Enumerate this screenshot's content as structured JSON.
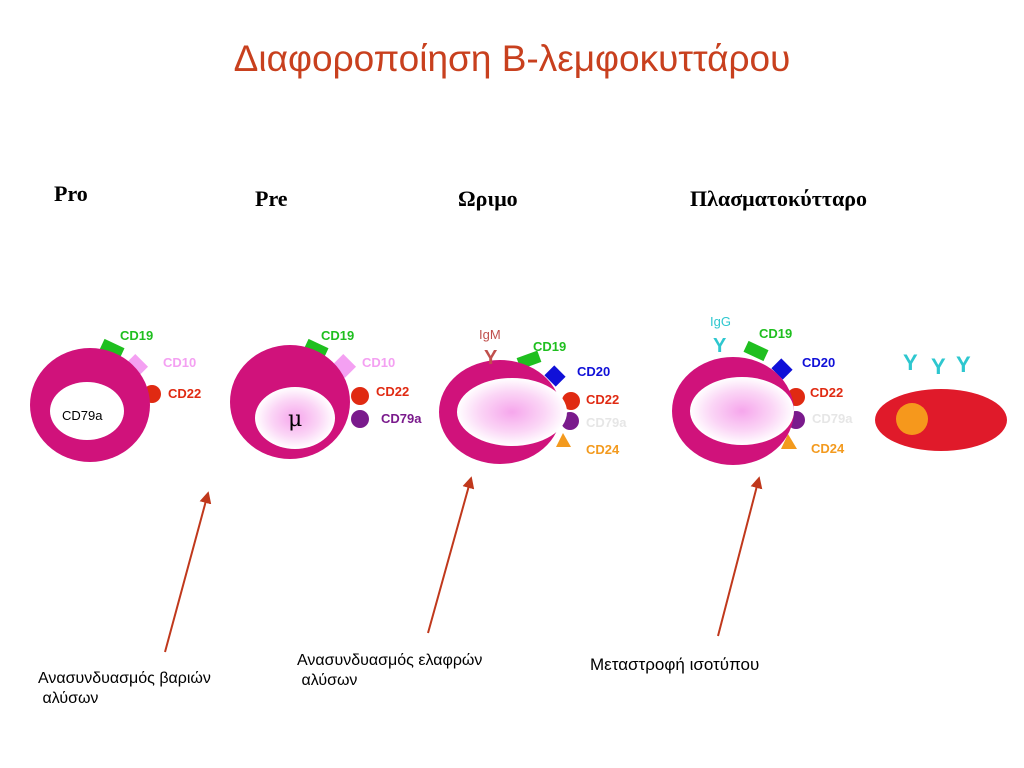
{
  "title": "Διαφοροποίηση Β-λεμφοκυττάρου",
  "stages": [
    "Pro",
    "Pre",
    "Ωριμο",
    "Πλασματοκύτταρο"
  ],
  "colors": {
    "title": "#c8401e",
    "cell": "#d0127b",
    "nucleus_glow": "#f6a6ec",
    "cd19": "#1fbf1f",
    "cd10": "#f4a0f2",
    "cd22": "#e02a12",
    "cd79a": "#7a1a8c",
    "cd20": "#1010d8",
    "cd24": "#f39a1e",
    "antibody": "#2ec7cf",
    "igm": "#c0504d",
    "arrow": "#c0381c",
    "plasma_cell": "#e01a2a",
    "plasma_nucleus": "#f6981c"
  },
  "cells": {
    "pro": {
      "cd19": "CD19",
      "cd10": "CD10",
      "cd22": "CD22",
      "cd79a": "CD79a"
    },
    "pre": {
      "cd19": "CD19",
      "cd10": "CD10",
      "cd22": "CD22",
      "cd79a": "CD79a",
      "nucleus": "μ"
    },
    "mature": {
      "igm": "IgM",
      "igm_symbol": "Y",
      "cd19": "CD19",
      "cd20": "CD20",
      "cd22": "CD22",
      "cd79a": "CD79a",
      "cd24": "CD24"
    },
    "switched": {
      "igg": "IgG",
      "igg_symbol": "Y",
      "cd19": "CD19",
      "cd20": "CD20",
      "cd22": "CD22",
      "cd79a": "CD79a",
      "cd24": "CD24"
    },
    "plasma": {
      "antibodies": [
        "Y",
        "Y",
        "Y"
      ]
    }
  },
  "captions": [
    "Ανασυνδυασμός βαριών\n αλύσων",
    "Ανασυνδυασμός ελαφρών\n αλύσων",
    "Μεταστροφή ισοτύπου"
  ]
}
